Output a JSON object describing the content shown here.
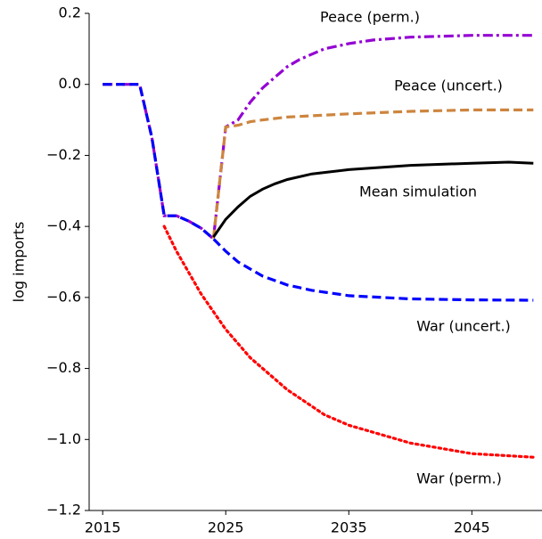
{
  "chart_data": {
    "type": "line",
    "ylabel": "log imports",
    "xlim": [
      2013.9,
      2050.7
    ],
    "ylim": [
      -1.2,
      0.2
    ],
    "xticks": [
      2015,
      2025,
      2035,
      2045
    ],
    "yticks": [
      {
        "value": -1.2,
        "label": "−1.2"
      },
      {
        "value": -1.0,
        "label": "−1.0"
      },
      {
        "value": -0.8,
        "label": "−0.8"
      },
      {
        "value": -0.6,
        "label": "−0.6"
      },
      {
        "value": -0.4,
        "label": "−0.4"
      },
      {
        "value": -0.2,
        "label": "−0.2"
      },
      {
        "value": 0.0,
        "label": "0.0"
      },
      0.2
    ],
    "series": [
      {
        "name": "Peace (perm.)",
        "color": "#9400d3",
        "linestyle": "dashdot",
        "x": [
          2015,
          2016,
          2017,
          2018,
          2019,
          2020,
          2021,
          2022,
          2023,
          2024,
          2025,
          2026,
          2027,
          2028,
          2029,
          2030,
          2031,
          2032,
          2033,
          2035,
          2037,
          2040,
          2045,
          2050
        ],
        "values": [
          0,
          0,
          0,
          0,
          -0.15,
          -0.37,
          -0.37,
          -0.385,
          -0.405,
          -0.435,
          -0.12,
          -0.1,
          -0.05,
          -0.01,
          0.02,
          0.05,
          0.07,
          0.085,
          0.1,
          0.115,
          0.125,
          0.133,
          0.138,
          0.138
        ]
      },
      {
        "name": "Peace (uncert.)",
        "color": "#cd853f",
        "linestyle": "dashed",
        "x": [
          2015,
          2016,
          2017,
          2018,
          2019,
          2020,
          2021,
          2022,
          2023,
          2024,
          2025,
          2026,
          2027,
          2028,
          2030,
          2035,
          2040,
          2045,
          2050
        ],
        "values": [
          0,
          0,
          0,
          0,
          -0.15,
          -0.37,
          -0.37,
          -0.385,
          -0.405,
          -0.435,
          -0.12,
          -0.115,
          -0.105,
          -0.1,
          -0.092,
          -0.083,
          -0.076,
          -0.072,
          -0.072
        ]
      },
      {
        "name": "Mean simulation",
        "color": "#000000",
        "linestyle": "solid",
        "x": [
          2024,
          2025,
          2026,
          2027,
          2028,
          2029,
          2030,
          2032,
          2035,
          2040,
          2045,
          2048,
          2050
        ],
        "values": [
          -0.43,
          -0.38,
          -0.345,
          -0.315,
          -0.295,
          -0.28,
          -0.268,
          -0.252,
          -0.24,
          -0.228,
          -0.222,
          -0.219,
          -0.222
        ]
      },
      {
        "name": "War (uncert.)",
        "color": "#0000ff",
        "linestyle": "dashed",
        "x": [
          2015,
          2016,
          2017,
          2018,
          2019,
          2020,
          2021,
          2022,
          2023,
          2024,
          2025,
          2026,
          2027,
          2028,
          2030,
          2032,
          2035,
          2040,
          2045,
          2050
        ],
        "values": [
          0,
          0,
          0,
          0,
          -0.15,
          -0.37,
          -0.37,
          -0.385,
          -0.405,
          -0.435,
          -0.47,
          -0.5,
          -0.52,
          -0.54,
          -0.565,
          -0.58,
          -0.595,
          -0.604,
          -0.607,
          -0.608
        ]
      },
      {
        "name": "War (perm.)",
        "color": "#ff0000",
        "linestyle": "dotted",
        "x": [
          2020,
          2021,
          2022,
          2023,
          2024,
          2025,
          2027,
          2030,
          2033,
          2035,
          2040,
          2045,
          2050
        ],
        "values": [
          -0.4,
          -0.47,
          -0.53,
          -0.59,
          -0.64,
          -0.69,
          -0.77,
          -0.86,
          -0.93,
          -0.96,
          -1.01,
          -1.04,
          -1.05
        ]
      }
    ]
  }
}
